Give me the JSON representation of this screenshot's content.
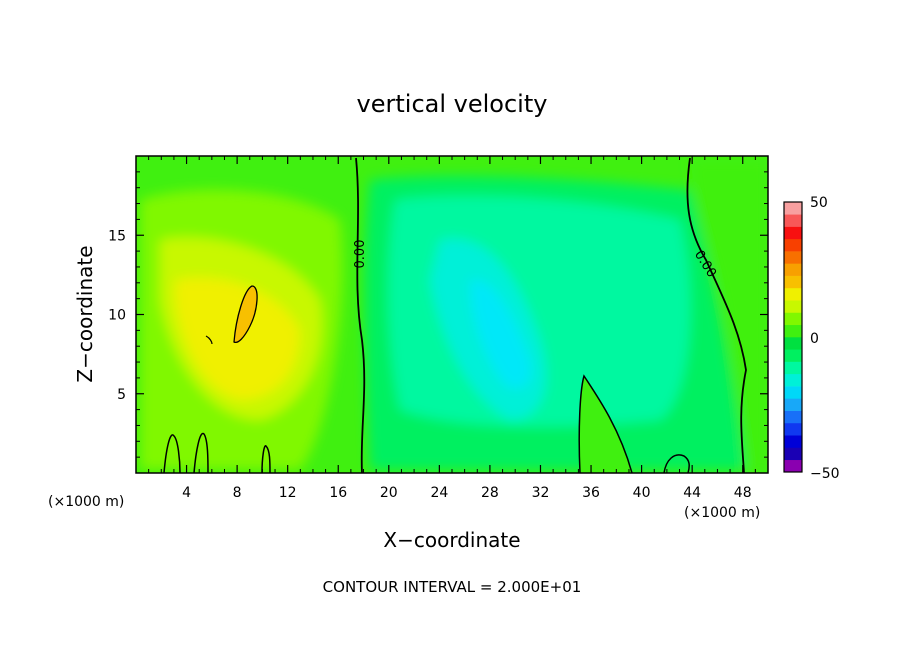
{
  "chart_data": {
    "type": "heatmap",
    "title": "vertical velocity",
    "xlabel": "X−coordinate",
    "ylabel": "Z−coordinate",
    "x_unit_left": "(×1000 m)",
    "x_unit_right": "(×1000 m)",
    "xlim": [
      0,
      50
    ],
    "ylim": [
      0,
      20
    ],
    "x_ticks": [
      4,
      8,
      12,
      16,
      20,
      24,
      28,
      32,
      36,
      40,
      44,
      48
    ],
    "y_ticks": [
      5,
      10,
      15
    ],
    "contour_labels": [
      "0.00",
      "0.00"
    ],
    "footer": "CONTOUR INTERVAL = 2.000E+01",
    "colorbar": {
      "min": -50,
      "max": 50,
      "tick_labels": [
        "50",
        "0",
        "−50"
      ],
      "tick_values": [
        50,
        0,
        -50
      ],
      "colors": [
        "#8a00b0",
        "#1a00b4",
        "#0000d8",
        "#1038f0",
        "#1870f8",
        "#18a8f8",
        "#00d8f8",
        "#00f0d8",
        "#00f8a0",
        "#00f060",
        "#00e040",
        "#40f010",
        "#80f800",
        "#c8f800",
        "#f0f000",
        "#f8c000",
        "#f8a000",
        "#f87000",
        "#f84000",
        "#f81010",
        "#f85858",
        "#f8a0a0"
      ]
    }
  }
}
